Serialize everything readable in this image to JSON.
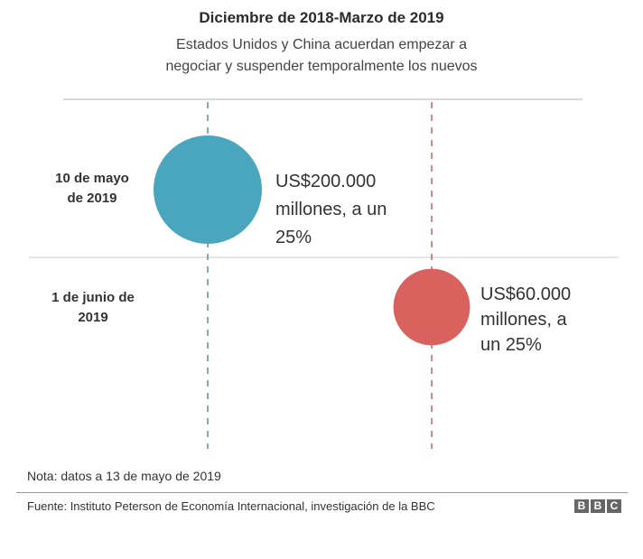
{
  "title": "Diciembre de 2018-Marzo de 2019",
  "subtitle": [
    "Estados Unidos y China acuerdan empezar a",
    "negociar y suspender temporalmente los nuevos"
  ],
  "chart_data": {
    "type": "scatter",
    "title": "Diciembre de 2018-Marzo de 2019",
    "rows": [
      {
        "label": [
          "10 de mayo",
          "de 2019"
        ],
        "country": "Estados Unidos",
        "value_usd_millions": 200000,
        "rate_percent": 25,
        "text": [
          "US$200.000",
          "millones, a un",
          "25%"
        ],
        "color": "#4aa6bd"
      },
      {
        "label": [
          "1 de junio de",
          "2019"
        ],
        "country": "China",
        "value_usd_millions": 60000,
        "rate_percent": 25,
        "text": [
          "US$60.000",
          "millones, a",
          "un 25%"
        ],
        "color": "#d9625f"
      }
    ],
    "colors": {
      "us": "#4aa6bd",
      "china": "#d9625f"
    }
  },
  "footer": {
    "note": "Nota: datos a 13 de mayo de 2019",
    "source": "Fuente: Instituto Peterson de Economía Internacional, investigación de la BBC",
    "logo": [
      "B",
      "B",
      "C"
    ]
  }
}
